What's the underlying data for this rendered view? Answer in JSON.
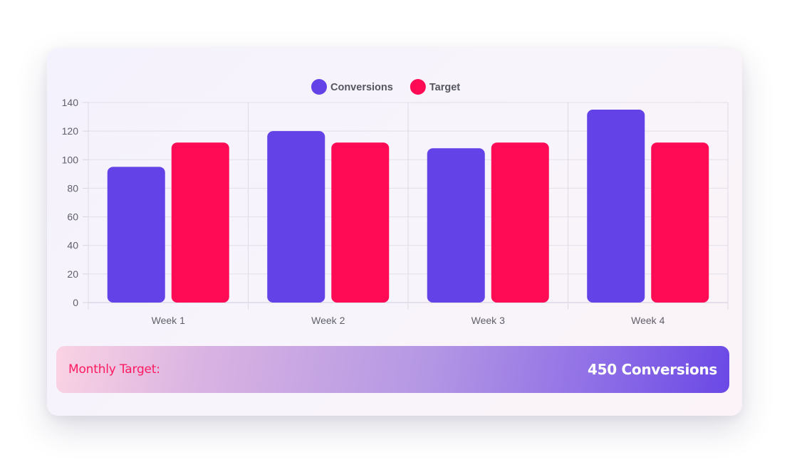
{
  "chart_data": {
    "type": "bar",
    "categories": [
      "Week 1",
      "Week 2",
      "Week 3",
      "Week 4"
    ],
    "series": [
      {
        "name": "Conversions",
        "values": [
          95,
          120,
          108,
          135
        ],
        "color": "#6342e8"
      },
      {
        "name": "Target",
        "values": [
          112,
          112,
          112,
          112
        ],
        "color": "#ff0a54"
      }
    ],
    "y_ticks": [
      "0",
      "20",
      "40",
      "60",
      "80",
      "100",
      "120",
      "140"
    ],
    "ylim": [
      0,
      140
    ],
    "grid": true,
    "legend_position": "top-center"
  },
  "banner": {
    "label": "Monthly Target:",
    "value": "450 Conversions"
  },
  "colors": {
    "accent": "#6342e8",
    "highlight": "#ff0a54"
  }
}
